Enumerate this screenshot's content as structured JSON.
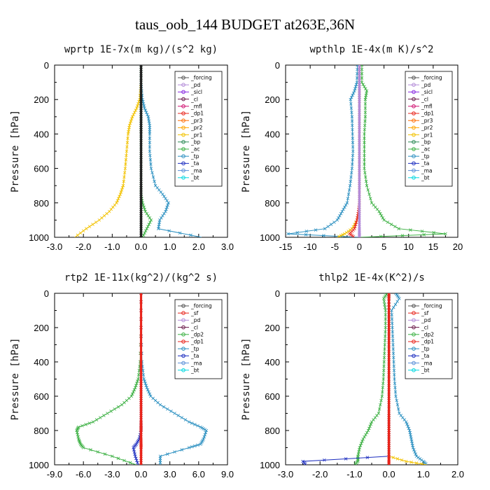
{
  "figure_title": "taus_oob_144  BUDGET at263E,36N",
  "ylabel": "Pressure [hPa]",
  "chart_data": [
    {
      "type": "line",
      "title": "wprtp  1E-7x(m kg)/(s^2 kg)",
      "xlabel": "",
      "ylabel": "Pressure [hPa]",
      "xlim": [
        -3.0,
        3.0
      ],
      "ylim": [
        1000,
        0
      ],
      "xticks": [
        "-3.0",
        "-2.0",
        "-1.0",
        "0.0",
        "1.0",
        "2.0",
        "3.0"
      ],
      "yticks": [
        "0",
        "200",
        "400",
        "600",
        "800",
        "1000"
      ],
      "legend": [
        "_forcing",
        "_pd",
        "_sicl",
        "_cl",
        "_mfl",
        "_dp1",
        "_pr3",
        "_pr2",
        "_pr1",
        "_bp",
        "_ac",
        "_tp",
        "_ta",
        "_ma",
        "_bt"
      ],
      "legend_position": "top-right",
      "pressure": [
        0,
        100,
        200,
        250,
        300,
        350,
        400,
        500,
        600,
        700,
        750,
        800,
        850,
        900,
        950,
        1000
      ],
      "series": [
        {
          "name": "_pr1",
          "color": "#f2c200",
          "x": [
            0,
            0,
            -0.05,
            -0.15,
            -0.3,
            -0.4,
            -0.45,
            -0.5,
            -0.55,
            -0.62,
            -0.72,
            -0.85,
            -1.1,
            -1.45,
            -1.9,
            -2.3
          ]
        },
        {
          "name": "_ac",
          "color": "#3cb043",
          "x": [
            0,
            0,
            0,
            0,
            0,
            0,
            0,
            0,
            0,
            0,
            0,
            0.05,
            0.15,
            0.35,
            0.2,
            0.05
          ]
        },
        {
          "name": "_tp",
          "color": "#2a8fc0",
          "x": [
            0,
            0,
            0.05,
            0.12,
            0.25,
            0.3,
            0.3,
            0.3,
            0.35,
            0.5,
            0.75,
            0.95,
            0.85,
            0.65,
            0.6,
            2.1
          ]
        },
        {
          "name": "_forcing",
          "color": "#222222",
          "x": [
            0,
            0,
            0,
            0,
            0,
            0,
            0,
            0,
            0,
            0,
            0,
            0,
            0,
            0,
            0,
            0
          ]
        }
      ]
    },
    {
      "type": "line",
      "title": "wpthlp  1E-4x(m K)/s^2",
      "xlabel": "",
      "ylabel": "Pressure [hPa]",
      "xlim": [
        -15,
        20
      ],
      "ylim": [
        1000,
        0
      ],
      "xticks": [
        "-15",
        "-10",
        "-5",
        "0",
        "5",
        "10",
        "15",
        "20"
      ],
      "yticks": [
        "0",
        "200",
        "400",
        "600",
        "800",
        "1000"
      ],
      "legend": [
        "_forcing",
        "_pd",
        "_sicl",
        "_cl",
        "_mfl",
        "_dp1",
        "_pr3",
        "_pr2",
        "_pr1",
        "_bp",
        "_ac",
        "_tp",
        "_ta",
        "_ma",
        "_bt"
      ],
      "legend_position": "top-right",
      "pressure": [
        0,
        100,
        150,
        200,
        300,
        400,
        500,
        600,
        700,
        800,
        850,
        900,
        950,
        980,
        1000
      ],
      "series": [
        {
          "name": "_ac",
          "color": "#3cb043",
          "x": [
            0.5,
            0.5,
            1.5,
            1.2,
            1.2,
            1.0,
            1.0,
            1.0,
            1.5,
            2.5,
            4.0,
            5.0,
            8.0,
            17.5,
            0
          ]
        },
        {
          "name": "_tp",
          "color": "#2a8fc0",
          "x": [
            -0.4,
            -0.5,
            -1.0,
            -1.8,
            -1.5,
            -1.4,
            -1.3,
            -1.5,
            -1.9,
            -2.5,
            -3.5,
            -4.5,
            -7.0,
            -14.5,
            0
          ]
        },
        {
          "name": "_pr1",
          "color": "#f2c200",
          "x": [
            0,
            0,
            0,
            0,
            0,
            0,
            0,
            0,
            0,
            0,
            0,
            -0.5,
            -1.5,
            -3.0,
            -4.5
          ]
        },
        {
          "name": "_dp1",
          "color": "#e8251c",
          "x": [
            0,
            0,
            0,
            0,
            0,
            0,
            0,
            0,
            0,
            0,
            -0.2,
            -0.5,
            -1.0,
            -2.0,
            -1.0
          ]
        },
        {
          "name": "_forcing",
          "color": "#b48cd8",
          "x": [
            0,
            0,
            0,
            0,
            0,
            0,
            0,
            0,
            0,
            0,
            0,
            0,
            0,
            0,
            0
          ]
        }
      ]
    },
    {
      "type": "line",
      "title": "rtp2  1E-11x(kg^2)/(kg^2 s)",
      "xlabel": "",
      "ylabel": "Pressure [hPa]",
      "xlim": [
        -9.0,
        9.0
      ],
      "ylim": [
        1000,
        0
      ],
      "xticks": [
        "-9.0",
        "-6.0",
        "-3.0",
        "0.0",
        "3.0",
        "6.0",
        "9.0"
      ],
      "yticks": [
        "0",
        "200",
        "400",
        "600",
        "800",
        "1000"
      ],
      "legend": [
        "_forcing",
        "_sf",
        "_pd",
        "_cl",
        "_dp2",
        "_dp1",
        "_tp",
        "_ta",
        "_ma",
        "_bt"
      ],
      "legend_position": "top-right",
      "pressure": [
        0,
        200,
        400,
        500,
        550,
        600,
        650,
        700,
        750,
        780,
        800,
        850,
        880,
        900,
        950,
        1000
      ],
      "series": [
        {
          "name": "_dp1",
          "color": "#3cb043",
          "x": [
            0,
            0,
            -0.1,
            -0.3,
            -0.6,
            -1.0,
            -2.0,
            -3.5,
            -5.0,
            -6.5,
            -6.7,
            -6.5,
            -6.3,
            -6.0,
            -3.0,
            -0.5
          ]
        },
        {
          "name": "_tp",
          "color": "#2a8fc0",
          "x": [
            0,
            0,
            0.1,
            0.3,
            0.6,
            1.0,
            2.0,
            3.5,
            5.0,
            6.2,
            6.8,
            6.5,
            6.2,
            5.0,
            2.0,
            2.0
          ]
        },
        {
          "name": "_ta",
          "color": "#1e2fc0",
          "x": [
            0,
            0,
            0,
            0,
            0,
            0,
            0,
            0,
            0,
            0,
            0,
            -0.2,
            -0.5,
            -0.8,
            -0.6,
            -0.3
          ]
        },
        {
          "name": "_forcing",
          "color": "#e8251c",
          "x": [
            0,
            0,
            0,
            0,
            0,
            0,
            0,
            0,
            0,
            0,
            0,
            0,
            0,
            0,
            0,
            0
          ]
        }
      ]
    },
    {
      "type": "line",
      "title": "thlp2  1E-4x(K^2)/s",
      "xlabel": "",
      "ylabel": "Pressure [hPa]",
      "xlim": [
        -3.0,
        2.0
      ],
      "ylim": [
        1000,
        0
      ],
      "xticks": [
        "-3.0",
        "-2.0",
        "-1.0",
        "0.0",
        "1.0",
        "2.0"
      ],
      "yticks": [
        "0",
        "200",
        "400",
        "600",
        "800",
        "1000"
      ],
      "legend": [
        "_forcing",
        "_sf",
        "_pd",
        "_cl",
        "_dp2",
        "_dp1",
        "_tp",
        "_ta",
        "_ma",
        "_bt"
      ],
      "legend_position": "top-right",
      "pressure": [
        0,
        30,
        100,
        200,
        300,
        400,
        500,
        600,
        700,
        750,
        800,
        850,
        900,
        950,
        980,
        1000
      ],
      "series": [
        {
          "name": "_dp1",
          "color": "#3cb043",
          "x": [
            -0.05,
            -0.15,
            -0.1,
            -0.1,
            -0.12,
            -0.14,
            -0.16,
            -0.2,
            -0.3,
            -0.5,
            -0.6,
            -0.75,
            -0.85,
            -0.9,
            -0.9,
            -1.0
          ]
        },
        {
          "name": "_tp",
          "color": "#2a8fc0",
          "x": [
            0.2,
            0.3,
            0.08,
            0.1,
            0.12,
            0.14,
            0.16,
            0.2,
            0.3,
            0.5,
            0.6,
            0.65,
            0.7,
            0.8,
            1.0,
            1.1
          ]
        },
        {
          "name": "_cl",
          "color": "#f2c200",
          "x": [
            0,
            0,
            0,
            0,
            0,
            0,
            0,
            0,
            0,
            0,
            0,
            0,
            0,
            0,
            0.5,
            1.1
          ]
        },
        {
          "name": "_ta",
          "color": "#1e2fc0",
          "x": [
            0,
            0,
            0,
            0,
            0,
            0,
            0,
            0,
            0,
            0,
            0,
            0,
            0,
            0,
            -2.5,
            -2.4
          ]
        },
        {
          "name": "_forcing",
          "color": "#e8251c",
          "x": [
            0,
            0,
            0,
            0,
            0,
            0,
            0,
            0,
            0,
            0,
            0,
            0,
            0,
            0,
            0,
            0
          ]
        }
      ]
    }
  ]
}
